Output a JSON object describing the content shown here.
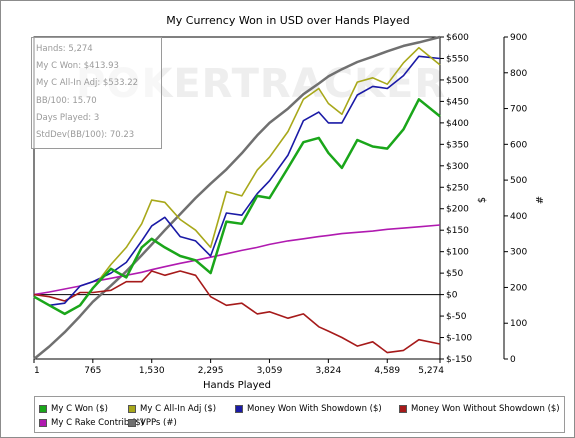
{
  "chart_data": {
    "type": "line",
    "title": "My Currency Won in USD over Hands Played",
    "xlabel": "Hands Played",
    "ylabel_left": "$",
    "ylabel_right": "#",
    "x_ticks": [
      "1",
      "765",
      "1,530",
      "2,295",
      "3,059",
      "3,824",
      "4,589",
      "5,274"
    ],
    "x_tick_values": [
      1,
      765,
      1530,
      2295,
      3059,
      3824,
      4589,
      5274
    ],
    "xlim": [
      1,
      5274
    ],
    "y_ticks": [
      "$600",
      "$550",
      "$500",
      "$450",
      "$400",
      "$350",
      "$300",
      "$250",
      "$200",
      "$150",
      "$100",
      "$50",
      "$0",
      "$-50",
      "$-100",
      "$-150"
    ],
    "ylim": [
      -150,
      600
    ],
    "y2_ticks": [
      "900",
      "800",
      "700",
      "600",
      "500",
      "400",
      "300",
      "200",
      "100",
      "0"
    ],
    "y2lim": [
      0,
      900
    ],
    "x": [
      1,
      200,
      400,
      600,
      765,
      1000,
      1200,
      1400,
      1530,
      1700,
      1900,
      2100,
      2295,
      2500,
      2700,
      2900,
      3059,
      3300,
      3500,
      3700,
      3824,
      4000,
      4200,
      4400,
      4589,
      4800,
      5000,
      5274
    ],
    "series": [
      {
        "name": "My C Won ($)",
        "color": "#1aa61a",
        "axis": "left",
        "values": [
          -5,
          -25,
          -45,
          -25,
          15,
          60,
          40,
          110,
          130,
          110,
          90,
          80,
          50,
          170,
          165,
          230,
          225,
          295,
          355,
          365,
          330,
          295,
          360,
          345,
          340,
          385,
          455,
          415
        ]
      },
      {
        "name": "My C All-In Adj ($)",
        "color": "#a8a81a",
        "axis": "left",
        "values": [
          -5,
          -25,
          -45,
          -25,
          15,
          70,
          110,
          165,
          220,
          215,
          175,
          150,
          110,
          240,
          230,
          290,
          320,
          380,
          455,
          480,
          445,
          420,
          495,
          505,
          490,
          540,
          575,
          535
        ]
      },
      {
        "name": "Money Won With Showdown ($)",
        "color": "#1a1aa6",
        "axis": "left",
        "values": [
          -5,
          -25,
          -20,
          20,
          30,
          50,
          75,
          125,
          160,
          180,
          135,
          125,
          90,
          190,
          185,
          235,
          265,
          325,
          405,
          425,
          400,
          400,
          465,
          485,
          480,
          510,
          555,
          550
        ]
      },
      {
        "name": "Money Won Without Showdown ($)",
        "color": "#a61a1a",
        "axis": "left",
        "values": [
          0,
          -5,
          -15,
          5,
          5,
          10,
          30,
          30,
          55,
          45,
          55,
          45,
          -5,
          -25,
          -20,
          -45,
          -40,
          -55,
          -45,
          -75,
          -85,
          -100,
          -120,
          -110,
          -135,
          -130,
          -105,
          -115
        ]
      },
      {
        "name": "My C Rake Contrib ($)",
        "color": "#b01ab0",
        "axis": "left",
        "values": [
          0,
          6,
          13,
          20,
          30,
          38,
          45,
          52,
          58,
          65,
          73,
          80,
          87,
          95,
          103,
          110,
          117,
          125,
          130,
          135,
          138,
          142,
          145,
          148,
          152,
          155,
          158,
          162
        ]
      },
      {
        "name": "VPPs (#)",
        "color": "#707070",
        "axis": "right",
        "values": [
          0,
          35,
          75,
          120,
          160,
          205,
          245,
          290,
          320,
          360,
          405,
          450,
          490,
          530,
          575,
          625,
          660,
          700,
          740,
          770,
          790,
          810,
          830,
          845,
          860,
          875,
          885,
          900
        ]
      }
    ],
    "grid": false,
    "legend": "bottom"
  },
  "stats": {
    "hands": "Hands: 5,274",
    "won": "My C Won: $413.93",
    "allin": "My C All-In Adj: $533.22",
    "bb100": "BB/100: 15.70",
    "days": "Days Played: 3",
    "stddev": "StdDev(BB/100): 70.23"
  },
  "watermark": "POKERTRACKER",
  "legend": {
    "items": [
      {
        "label": "My C Won ($)",
        "color": "#1aa61a"
      },
      {
        "label": "My C All-In Adj ($)",
        "color": "#a8a81a"
      },
      {
        "label": "Money Won With Showdown ($)",
        "color": "#1a1aa6"
      },
      {
        "label": "Money Won Without Showdown ($)",
        "color": "#a61a1a"
      },
      {
        "label": "My C Rake Contrib ($)",
        "color": "#b01ab0"
      },
      {
        "label": "VPPs (#)",
        "color": "#707070"
      }
    ]
  }
}
